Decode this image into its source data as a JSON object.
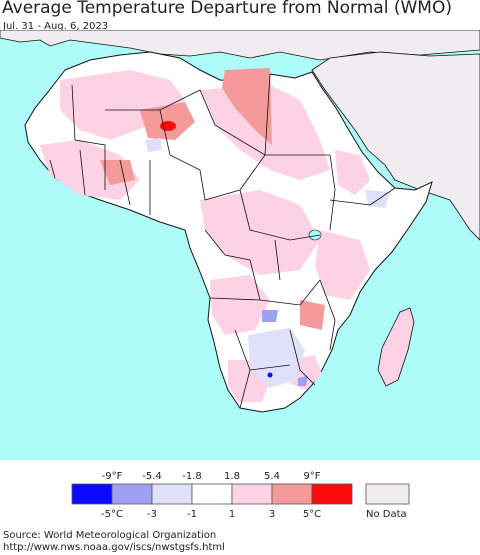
{
  "title": "Average Temperature Departure from Normal (WMO)",
  "subtitle": "Jul. 31 - Aug. 6, 2023",
  "colors": {
    "ocean": "#aefcfa",
    "land_neutral": "#ffffff",
    "no_data": "#f0ecf0",
    "border": "#111111"
  },
  "legend": {
    "f_labels": [
      "-9°F",
      "-5.4",
      "-1.8",
      "1.8",
      "5.4",
      "9°F"
    ],
    "c_labels": [
      "-5°C",
      "-3",
      "-1",
      "1",
      "3",
      "5°C"
    ],
    "bins": [
      {
        "color": "#0a0aff"
      },
      {
        "color": "#a0a0f2"
      },
      {
        "color": "#e0e0fa"
      },
      {
        "color": "#ffffff"
      },
      {
        "color": "#fcd2e4"
      },
      {
        "color": "#f59a9a"
      },
      {
        "color": "#fa0a0a"
      }
    ],
    "no_data_color": "#f0ecf0",
    "no_data_label": "No Data"
  },
  "source": {
    "line1": "Source: World Meteorological Organization",
    "line2": "http://www.nws.noaa.gov/iscs/nwstgsfs.html"
  }
}
